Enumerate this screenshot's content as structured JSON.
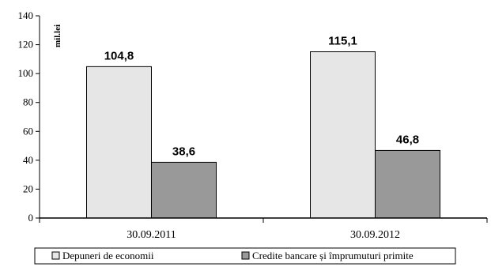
{
  "chart_data": {
    "type": "bar",
    "ylabel": "mil.lei",
    "ylim": [
      0,
      140
    ],
    "yticks": [
      "0",
      "20",
      "40",
      "60",
      "80",
      "100",
      "120",
      "140"
    ],
    "categories": [
      "30.09.2011",
      "30.09.2012"
    ],
    "series": [
      {
        "name": "Depuneri de economii",
        "values": [
          104.8,
          115.1
        ],
        "labels": [
          "104,8",
          "115,1"
        ],
        "color": "#e6e6e6"
      },
      {
        "name": "Credite bancare și împrumuturi primite",
        "values": [
          38.6,
          46.8
        ],
        "labels": [
          "38,6",
          "46,8"
        ],
        "color": "#999999"
      }
    ],
    "grid": false,
    "legend_position": "bottom"
  }
}
